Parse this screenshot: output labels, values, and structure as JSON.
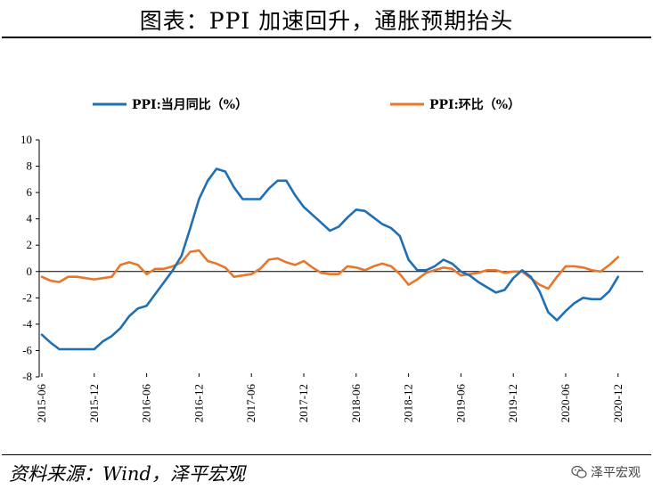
{
  "title": "图表：PPI 加速回升，通胀预期抬头",
  "source": "资料来源：Wind，泽平宏观",
  "watermark": "泽平宏观",
  "chart_data": {
    "type": "line",
    "title": "",
    "xlabel": "",
    "ylabel": "",
    "ylim": [
      -8,
      10
    ],
    "yticks": [
      10,
      8,
      6,
      4,
      2,
      0,
      -2,
      -4,
      -6,
      -8
    ],
    "xtick_labels": [
      "2015-06",
      "2015-12",
      "2016-06",
      "2016-12",
      "2017-06",
      "2017-12",
      "2018-06",
      "2018-12",
      "2019-06",
      "2019-12",
      "2020-06",
      "2020-12"
    ],
    "grid": false,
    "legend_position": "top",
    "x": [
      "2015-06",
      "2015-07",
      "2015-08",
      "2015-09",
      "2015-10",
      "2015-11",
      "2015-12",
      "2016-01",
      "2016-02",
      "2016-03",
      "2016-04",
      "2016-05",
      "2016-06",
      "2016-07",
      "2016-08",
      "2016-09",
      "2016-10",
      "2016-11",
      "2016-12",
      "2017-01",
      "2017-02",
      "2017-03",
      "2017-04",
      "2017-05",
      "2017-06",
      "2017-07",
      "2017-08",
      "2017-09",
      "2017-10",
      "2017-11",
      "2017-12",
      "2018-01",
      "2018-02",
      "2018-03",
      "2018-04",
      "2018-05",
      "2018-06",
      "2018-07",
      "2018-08",
      "2018-09",
      "2018-10",
      "2018-11",
      "2018-12",
      "2019-01",
      "2019-02",
      "2019-03",
      "2019-04",
      "2019-05",
      "2019-06",
      "2019-07",
      "2019-08",
      "2019-09",
      "2019-10",
      "2019-11",
      "2019-12",
      "2020-01",
      "2020-02",
      "2020-03",
      "2020-04",
      "2020-05",
      "2020-06",
      "2020-07",
      "2020-08",
      "2020-09",
      "2020-10",
      "2020-11",
      "2020-12"
    ],
    "series": [
      {
        "name": "PPI:当月同比（%）",
        "color": "#1f6fb5",
        "values": [
          -4.8,
          -5.4,
          -5.9,
          -5.9,
          -5.9,
          -5.9,
          -5.9,
          -5.3,
          -4.9,
          -4.3,
          -3.4,
          -2.8,
          -2.6,
          -1.7,
          -0.8,
          0.1,
          1.2,
          3.3,
          5.5,
          6.9,
          7.8,
          7.6,
          6.4,
          5.5,
          5.5,
          5.5,
          6.3,
          6.9,
          6.9,
          5.8,
          4.9,
          4.3,
          3.7,
          3.1,
          3.4,
          4.1,
          4.7,
          4.6,
          4.1,
          3.6,
          3.3,
          2.7,
          0.9,
          0.1,
          0.1,
          0.4,
          0.9,
          0.6,
          0.0,
          -0.3,
          -0.8,
          -1.2,
          -1.6,
          -1.4,
          -0.5,
          0.1,
          -0.4,
          -1.5,
          -3.1,
          -3.7,
          -3.0,
          -2.4,
          -2.0,
          -2.1,
          -2.1,
          -1.5,
          -0.4
        ]
      },
      {
        "name": "PPI:环比（%）",
        "color": "#e8762b",
        "values": [
          -0.4,
          -0.7,
          -0.8,
          -0.4,
          -0.4,
          -0.5,
          -0.6,
          -0.5,
          -0.4,
          0.5,
          0.7,
          0.5,
          -0.2,
          0.2,
          0.2,
          0.4,
          0.7,
          1.5,
          1.6,
          0.8,
          0.6,
          0.3,
          -0.4,
          -0.3,
          -0.2,
          0.2,
          0.9,
          1.0,
          0.7,
          0.5,
          0.8,
          0.3,
          -0.1,
          -0.2,
          -0.2,
          0.4,
          0.3,
          0.1,
          0.4,
          0.6,
          0.4,
          -0.2,
          -1.0,
          -0.6,
          -0.1,
          0.1,
          0.3,
          0.2,
          -0.3,
          -0.2,
          -0.1,
          0.1,
          0.1,
          -0.1,
          0.0,
          0.0,
          -0.5,
          -1.0,
          -1.3,
          -0.4,
          0.4,
          0.4,
          0.3,
          0.1,
          0.0,
          0.5,
          1.1
        ]
      }
    ]
  }
}
